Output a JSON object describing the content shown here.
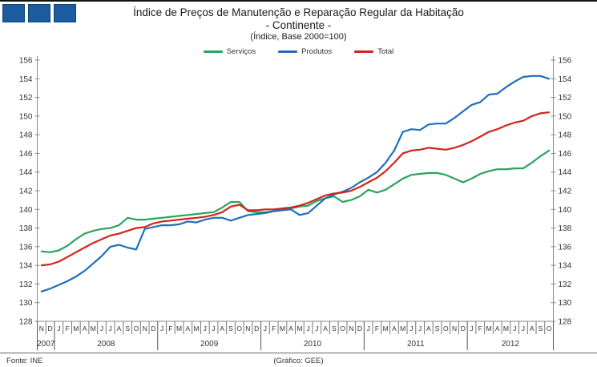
{
  "page": {
    "background": "#FFFFFF",
    "top_bar_color": "#111111"
  },
  "logo": {
    "square_count": 3,
    "square_color": "#1A5C9E"
  },
  "title": {
    "line1": "Índice de Preços de Manutenção e Reparação Regular da Habitação",
    "line2": "- Continente -",
    "line3": "(Índice, Base 2000=100)"
  },
  "footer": {
    "source": "Fonte: INE",
    "credit": "(Gráfico: GEE)"
  },
  "chart_data": {
    "type": "line",
    "title": "Índice de Preços de Manutenção e Reparação Regular da Habitação - Continente (Índice, Base 2000=100)",
    "ylim": [
      128,
      156
    ],
    "y_ticks": [
      156,
      154,
      152,
      150,
      148,
      146,
      144,
      142,
      140,
      138,
      136,
      134,
      132,
      130,
      128
    ],
    "grid": false,
    "legend_position": "top",
    "x_month_labels": [
      "N",
      "D",
      "J",
      "F",
      "M",
      "A",
      "M",
      "J",
      "J",
      "A",
      "S",
      "O",
      "N",
      "D",
      "J",
      "F",
      "M",
      "A",
      "M",
      "J",
      "J",
      "A",
      "S",
      "O",
      "N",
      "D",
      "J",
      "F",
      "M",
      "A",
      "M",
      "J",
      "J",
      "A",
      "S",
      "O",
      "N",
      "D",
      "J",
      "F",
      "M",
      "A",
      "M",
      "J",
      "J",
      "A",
      "S",
      "O",
      "N",
      "D",
      "J",
      "F",
      "M",
      "A",
      "M",
      "J",
      "J",
      "A",
      "S",
      "O"
    ],
    "years": [
      {
        "label": "2007",
        "months": 2
      },
      {
        "label": "2008",
        "months": 12
      },
      {
        "label": "2009",
        "months": 12
      },
      {
        "label": "2010",
        "months": 12
      },
      {
        "label": "2011",
        "months": 12
      },
      {
        "label": "2012",
        "months": 10
      }
    ],
    "series": [
      {
        "name": "Serviços",
        "color": "#2AA45C",
        "values": [
          135.5,
          135.4,
          135.6,
          136.1,
          136.8,
          137.4,
          137.7,
          137.9,
          138.0,
          138.3,
          139.1,
          138.9,
          138.9,
          139.0,
          139.1,
          139.2,
          139.3,
          139.4,
          139.5,
          139.6,
          139.7,
          140.2,
          140.8,
          140.8,
          139.8,
          139.7,
          139.7,
          139.8,
          140.0,
          140.1,
          140.3,
          140.4,
          140.9,
          141.2,
          141.4,
          140.8,
          141.0,
          141.4,
          142.1,
          141.8,
          142.1,
          142.7,
          143.3,
          143.7,
          143.8,
          143.9,
          143.9,
          143.7,
          143.3,
          142.9,
          143.3,
          143.8,
          144.1,
          144.3,
          144.3,
          144.4,
          144.4,
          145.0,
          145.7,
          146.3
        ]
      },
      {
        "name": "Produtos",
        "color": "#1F6FBA",
        "values": [
          131.2,
          131.5,
          131.9,
          132.3,
          132.8,
          133.4,
          134.2,
          135.0,
          136.0,
          136.2,
          135.9,
          135.7,
          137.9,
          138.1,
          138.3,
          138.3,
          138.4,
          138.7,
          138.6,
          138.9,
          139.1,
          139.1,
          138.8,
          139.1,
          139.4,
          139.5,
          139.6,
          139.8,
          139.9,
          140.0,
          139.4,
          139.6,
          140.4,
          141.2,
          141.6,
          141.9,
          142.3,
          142.9,
          143.4,
          144.0,
          145.0,
          146.3,
          148.3,
          148.6,
          148.5,
          149.1,
          149.2,
          149.2,
          149.8,
          150.5,
          151.2,
          151.5,
          152.3,
          152.4,
          153.1,
          153.7,
          154.2,
          154.3,
          154.3,
          154.0
        ]
      },
      {
        "name": "Total",
        "color": "#D1251B",
        "values": [
          134.0,
          134.1,
          134.4,
          134.9,
          135.4,
          135.9,
          136.4,
          136.8,
          137.2,
          137.4,
          137.7,
          138.0,
          138.1,
          138.5,
          138.7,
          138.8,
          138.9,
          139.0,
          139.1,
          139.2,
          139.4,
          139.7,
          140.3,
          140.5,
          139.9,
          139.9,
          140.0,
          140.0,
          140.1,
          140.2,
          140.4,
          140.7,
          141.1,
          141.5,
          141.7,
          141.8,
          142.0,
          142.4,
          142.9,
          143.4,
          144.1,
          145.0,
          146.0,
          146.3,
          146.4,
          146.6,
          146.5,
          146.4,
          146.6,
          146.9,
          147.3,
          147.8,
          148.3,
          148.6,
          149.0,
          149.3,
          149.5,
          150.0,
          150.3,
          150.4
        ]
      }
    ]
  }
}
